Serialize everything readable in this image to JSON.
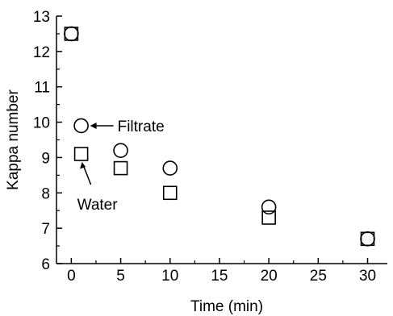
{
  "chart_data": {
    "type": "scatter",
    "xlabel": "Time (min)",
    "ylabel": "Kappa number",
    "xlim": [
      -1.5,
      32
    ],
    "ylim": [
      6,
      13
    ],
    "xticks": [
      0,
      5,
      10,
      15,
      20,
      25,
      30
    ],
    "yticks": [
      6,
      7,
      8,
      9,
      10,
      11,
      12,
      13
    ],
    "grid": false,
    "series": [
      {
        "name": "Filtrate",
        "marker": "circle",
        "color": "#000000",
        "x": [
          0,
          1,
          5,
          10,
          20,
          30
        ],
        "y": [
          12.5,
          9.9,
          9.2,
          8.7,
          7.6,
          6.7
        ]
      },
      {
        "name": "Water",
        "marker": "square",
        "color": "#000000",
        "x": [
          0,
          1,
          5,
          10,
          20,
          30
        ],
        "y": [
          12.5,
          9.1,
          8.7,
          8.0,
          7.3,
          6.7
        ]
      }
    ],
    "annotations": [
      {
        "text": "Filtrate",
        "series": "Filtrate"
      },
      {
        "text": "Water",
        "series": "Water"
      }
    ]
  }
}
